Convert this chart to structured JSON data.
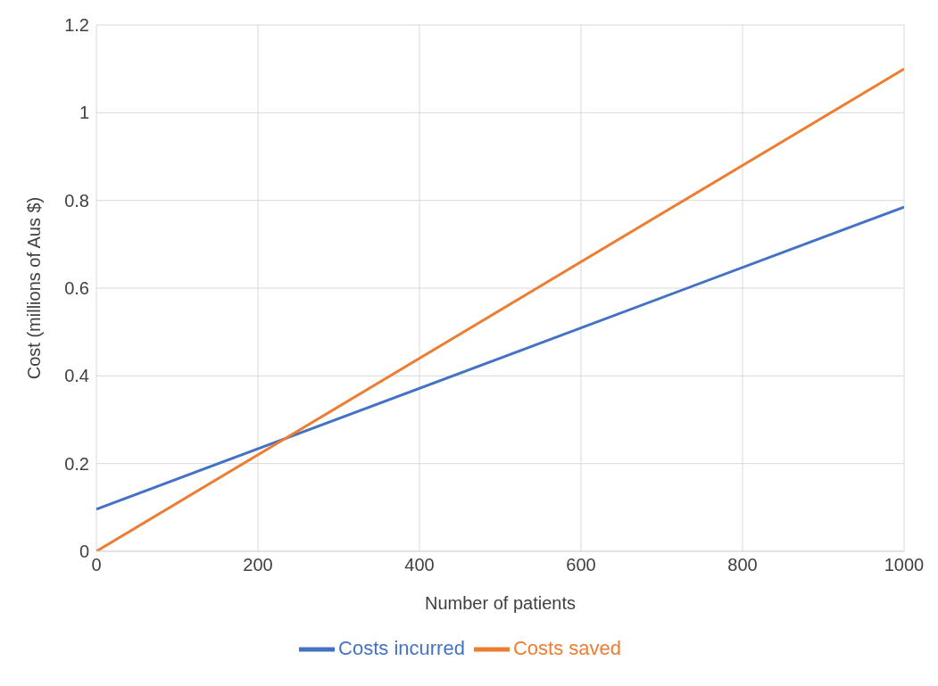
{
  "chart_data": {
    "type": "line",
    "xlabel": "Number of patients",
    "ylabel": "Cost (millions of Aus $)",
    "x": [
      0,
      1000
    ],
    "series": [
      {
        "name": "Costs incurred",
        "color": "#4472c4",
        "values": [
          0.096,
          0.785
        ]
      },
      {
        "name": "Costs saved",
        "color": "#ed7d31",
        "values": [
          0,
          1.1
        ]
      }
    ],
    "xlim": [
      0,
      1000
    ],
    "xticks": [
      0,
      200,
      400,
      600,
      800,
      1000
    ],
    "ylim": [
      0,
      1.2
    ],
    "yticks": [
      0,
      0.2,
      0.4,
      0.6,
      0.8,
      1,
      1.2
    ],
    "grid": true,
    "legend": "bottom",
    "marker": "none",
    "line_style": "solid"
  }
}
